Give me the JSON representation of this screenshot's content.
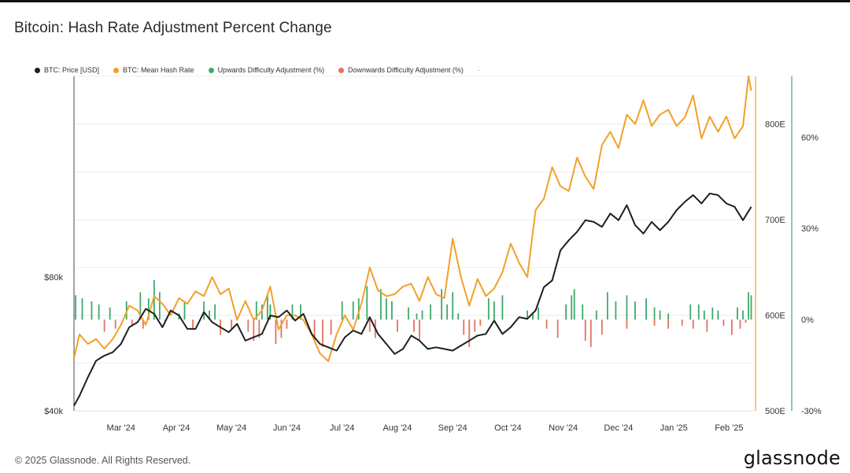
{
  "header": {
    "title": "Bitcoin: Hash Rate Adjustment Percent Change"
  },
  "legend": {
    "items": [
      {
        "label": "BTC: Price [USD]",
        "color": "#1f1f1f"
      },
      {
        "label": "BTC: Mean Hash Rate",
        "color": "#f2a02a"
      },
      {
        "label": "Upwards Difficulty Adjustment (%)",
        "color": "#3daa6a"
      },
      {
        "label": "Downwards Difficulty Adjustment (%)",
        "color": "#e0735f"
      }
    ],
    "extra": "-"
  },
  "footer": {
    "copyright": "© 2025 Glassnode. All Rights Reserved.",
    "logo": "glassnode"
  },
  "chart_data": {
    "type": "line",
    "x_tick_labels": [
      "Mar '24",
      "Apr '24",
      "May '24",
      "Jun '24",
      "Jul '24",
      "Aug '24",
      "Sep '24",
      "Oct '24",
      "Nov '24",
      "Dec '24",
      "Jan '25",
      "Feb '25"
    ],
    "x_range": [
      0,
      12.3
    ],
    "x_ticks": [
      0.85,
      1.85,
      2.85,
      3.85,
      4.85,
      5.85,
      6.85,
      7.85,
      8.85,
      9.85,
      10.85,
      11.85
    ],
    "price_axis": {
      "ticks": [
        {
          "value": 40000,
          "label": "$40k"
        },
        {
          "value": 80000,
          "label": "$80k"
        }
      ],
      "range": [
        40000,
        140000
      ]
    },
    "hashrate_axis": {
      "ticks": [
        {
          "value": 500,
          "label": "500E"
        },
        {
          "value": 600,
          "label": "600E"
        },
        {
          "value": 700,
          "label": "700E"
        },
        {
          "value": 800,
          "label": "800E"
        }
      ],
      "range": [
        500,
        850
      ]
    },
    "pct_axis": {
      "ticks": [
        {
          "value": -30,
          "label": "-30%"
        },
        {
          "value": 0,
          "label": "0%"
        },
        {
          "value": 30,
          "label": "30%"
        },
        {
          "value": 60,
          "label": "60%"
        }
      ],
      "range": [
        -30,
        80
      ]
    },
    "series": [
      {
        "name": "BTC: Price [USD]",
        "color": "#1f1f1f",
        "axis": "price",
        "x": [
          0,
          0.1,
          0.25,
          0.4,
          0.55,
          0.7,
          0.85,
          1.0,
          1.15,
          1.3,
          1.45,
          1.6,
          1.75,
          1.9,
          2.05,
          2.2,
          2.35,
          2.5,
          2.65,
          2.8,
          2.95,
          3.1,
          3.25,
          3.4,
          3.55,
          3.7,
          3.85,
          4.0,
          4.15,
          4.3,
          4.45,
          4.6,
          4.75,
          4.9,
          5.05,
          5.2,
          5.35,
          5.5,
          5.65,
          5.8,
          5.95,
          6.1,
          6.25,
          6.4,
          6.55,
          6.7,
          6.85,
          7.0,
          7.15,
          7.3,
          7.45,
          7.6,
          7.75,
          7.9,
          8.05,
          8.2,
          8.35,
          8.5,
          8.65,
          8.8,
          8.95,
          9.1,
          9.25,
          9.4,
          9.55,
          9.7,
          9.85,
          10.0,
          10.15,
          10.3,
          10.45,
          10.6,
          10.75,
          10.9,
          11.05,
          11.2,
          11.35,
          11.5,
          11.65,
          11.8,
          11.95,
          12.1,
          12.25
        ],
        "values": [
          41500,
          44500,
          50000,
          55000,
          56500,
          57500,
          60000,
          65000,
          66500,
          70500,
          69000,
          65000,
          70000,
          68500,
          64500,
          64500,
          69500,
          66500,
          65000,
          63500,
          66000,
          61000,
          62000,
          63000,
          68500,
          68000,
          70000,
          67000,
          69000,
          63000,
          60000,
          59000,
          58000,
          62000,
          64000,
          63000,
          68000,
          63000,
          60000,
          57000,
          58500,
          62500,
          61000,
          58500,
          59000,
          58500,
          58000,
          59500,
          61000,
          62500,
          63000,
          67000,
          63000,
          65000,
          68000,
          67500,
          70000,
          77000,
          79000,
          88000,
          91000,
          93500,
          97000,
          96500,
          95000,
          99000,
          97000,
          101500,
          95500,
          93000,
          96500,
          94000,
          96500,
          100000,
          102500,
          104500,
          102000,
          105000,
          104500,
          102000,
          101000,
          97000,
          101000
        ]
      },
      {
        "name": "BTC: Mean Hash Rate",
        "color": "#f2a02a",
        "axis": "hashrate",
        "x": [
          0,
          0.1,
          0.25,
          0.4,
          0.55,
          0.7,
          0.85,
          1.0,
          1.15,
          1.3,
          1.45,
          1.6,
          1.75,
          1.9,
          2.05,
          2.2,
          2.35,
          2.5,
          2.65,
          2.8,
          2.95,
          3.1,
          3.25,
          3.4,
          3.55,
          3.7,
          3.85,
          4.0,
          4.15,
          4.3,
          4.45,
          4.6,
          4.75,
          4.9,
          5.05,
          5.2,
          5.35,
          5.5,
          5.65,
          5.8,
          5.95,
          6.1,
          6.25,
          6.4,
          6.55,
          6.7,
          6.85,
          7.0,
          7.15,
          7.3,
          7.45,
          7.6,
          7.75,
          7.9,
          8.05,
          8.2,
          8.35,
          8.5,
          8.65,
          8.8,
          8.95,
          9.1,
          9.25,
          9.4,
          9.55,
          9.7,
          9.85,
          10.0,
          10.15,
          10.3,
          10.45,
          10.6,
          10.75,
          10.9,
          11.05,
          11.2,
          11.35,
          11.5,
          11.65,
          11.8,
          11.95,
          12.1,
          12.2,
          12.25
        ],
        "values": [
          555,
          580,
          570,
          575,
          565,
          575,
          590,
          610,
          605,
          590,
          620,
          612,
          600,
          618,
          612,
          625,
          620,
          640,
          622,
          628,
          595,
          615,
          595,
          605,
          630,
          585,
          600,
          600,
          595,
          580,
          560,
          552,
          580,
          600,
          585,
          612,
          650,
          626,
          620,
          622,
          630,
          633,
          615,
          640,
          622,
          618,
          680,
          640,
          610,
          638,
          620,
          628,
          645,
          675,
          655,
          640,
          710,
          722,
          755,
          735,
          730,
          765,
          745,
          732,
          778,
          792,
          775,
          810,
          800,
          825,
          798,
          810,
          815,
          798,
          807,
          830,
          785,
          808,
          792,
          808,
          785,
          798,
          850,
          835
        ]
      },
      {
        "name": "Upwards Difficulty Adjustment (%)",
        "color": "#3daa6a",
        "axis": "pct",
        "x": [
          0.03,
          0.15,
          0.32,
          0.45,
          0.65,
          0.95,
          1.2,
          1.35,
          1.45,
          1.55,
          1.9,
          2.0,
          2.35,
          2.45,
          2.55,
          3.3,
          3.4,
          3.5,
          3.55,
          3.95,
          4.1,
          4.85,
          5.05,
          5.15,
          5.3,
          5.55,
          5.65,
          5.75,
          6.05,
          6.2,
          6.3,
          6.45,
          6.65,
          6.75,
          6.85,
          6.95,
          7.5,
          7.6,
          7.75,
          8.2,
          8.3,
          8.4,
          8.9,
          9.0,
          9.05,
          9.2,
          9.45,
          9.65,
          9.8,
          10.0,
          10.15,
          10.35,
          10.5,
          10.6,
          10.75,
          11.15,
          11.3,
          11.4,
          11.55,
          11.65,
          12.0,
          12.1,
          12.2,
          12.25
        ],
        "values": [
          8,
          7,
          6,
          5,
          4,
          6,
          9,
          7,
          13,
          9,
          2,
          6,
          6,
          3,
          5,
          6,
          5,
          8,
          5,
          5,
          5,
          6,
          6,
          7,
          11,
          10,
          7,
          6,
          4,
          2,
          3,
          5,
          10,
          5,
          9,
          2,
          7,
          6,
          8,
          3,
          2,
          4,
          5,
          8,
          10,
          5,
          3,
          9,
          6,
          8,
          6,
          7,
          4,
          3,
          2,
          5,
          5,
          3,
          4,
          3,
          4,
          3,
          9,
          8
        ]
      },
      {
        "name": "Downwards Difficulty Adjustment (%)",
        "color": "#e0735f",
        "axis": "pct",
        "x": [
          0.55,
          0.75,
          1.05,
          1.25,
          1.65,
          2.15,
          2.65,
          2.85,
          3.15,
          3.25,
          3.35,
          3.65,
          3.75,
          3.85,
          4.35,
          4.5,
          4.65,
          5.35,
          5.45,
          5.85,
          6.15,
          6.25,
          7.05,
          7.15,
          7.25,
          7.35,
          8.55,
          8.75,
          9.25,
          9.35,
          9.55,
          10.0,
          10.5,
          10.75,
          11.0,
          11.2,
          11.45,
          11.75,
          11.9,
          12.05,
          12.15
        ],
        "values": [
          -4,
          -3,
          -2,
          -3,
          -1,
          -3,
          -5,
          -3,
          -4,
          -7,
          -6,
          -8,
          -6,
          -3,
          -7,
          -9,
          -5,
          -4,
          -6,
          -4,
          -4,
          -7,
          -5,
          -9,
          -4,
          -2,
          -3,
          -6,
          -7,
          -9,
          -5,
          -3,
          -2,
          -3,
          -2,
          -3,
          -4,
          -2,
          -5,
          -3,
          -1
        ]
      }
    ]
  }
}
